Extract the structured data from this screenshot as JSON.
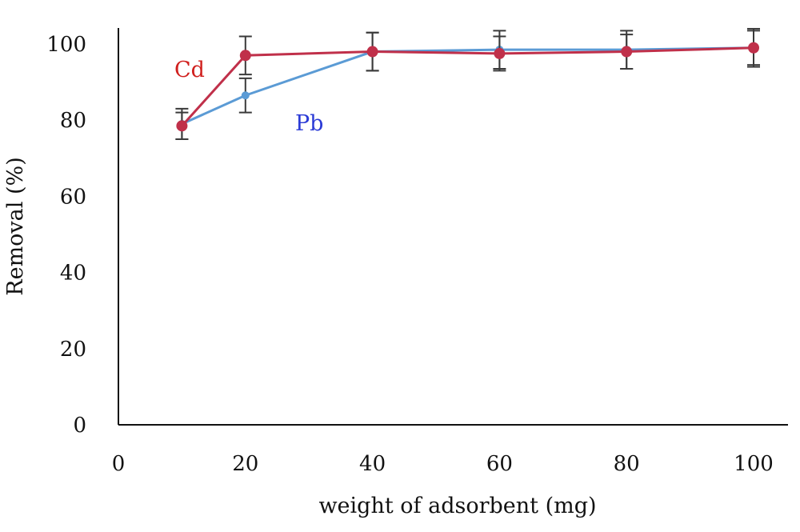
{
  "chart_data": {
    "type": "line",
    "title": "",
    "xlabel": "weight of adsorbent (mg)",
    "ylabel": "Removal (%)",
    "xlim": [
      0,
      100
    ],
    "ylim": [
      0,
      100
    ],
    "xticks": [
      "0",
      "20",
      "40",
      "60",
      "80",
      "100"
    ],
    "yticks": [
      "0",
      "20",
      "40",
      "60",
      "80",
      "100"
    ],
    "grid": false,
    "legend": "inline labels",
    "series": [
      {
        "name": "Pb",
        "color": "#5b9bd5",
        "x": [
          10,
          20,
          40,
          60,
          80,
          100
        ],
        "y": [
          79,
          86.5,
          98,
          98.5,
          98.5,
          99
        ],
        "error": [
          4,
          4.5,
          5,
          5,
          5,
          5
        ]
      },
      {
        "name": "Cd",
        "color": "#c0304a",
        "x": [
          10,
          20,
          40,
          60,
          80,
          100
        ],
        "y": [
          78.5,
          97,
          98,
          97.5,
          98,
          99
        ],
        "error": [
          3.5,
          5,
          5,
          4.5,
          4.5,
          4.5
        ]
      }
    ],
    "label_colors": {
      "Pb": "#2b3bd6",
      "Cd": "#d0201e"
    }
  }
}
